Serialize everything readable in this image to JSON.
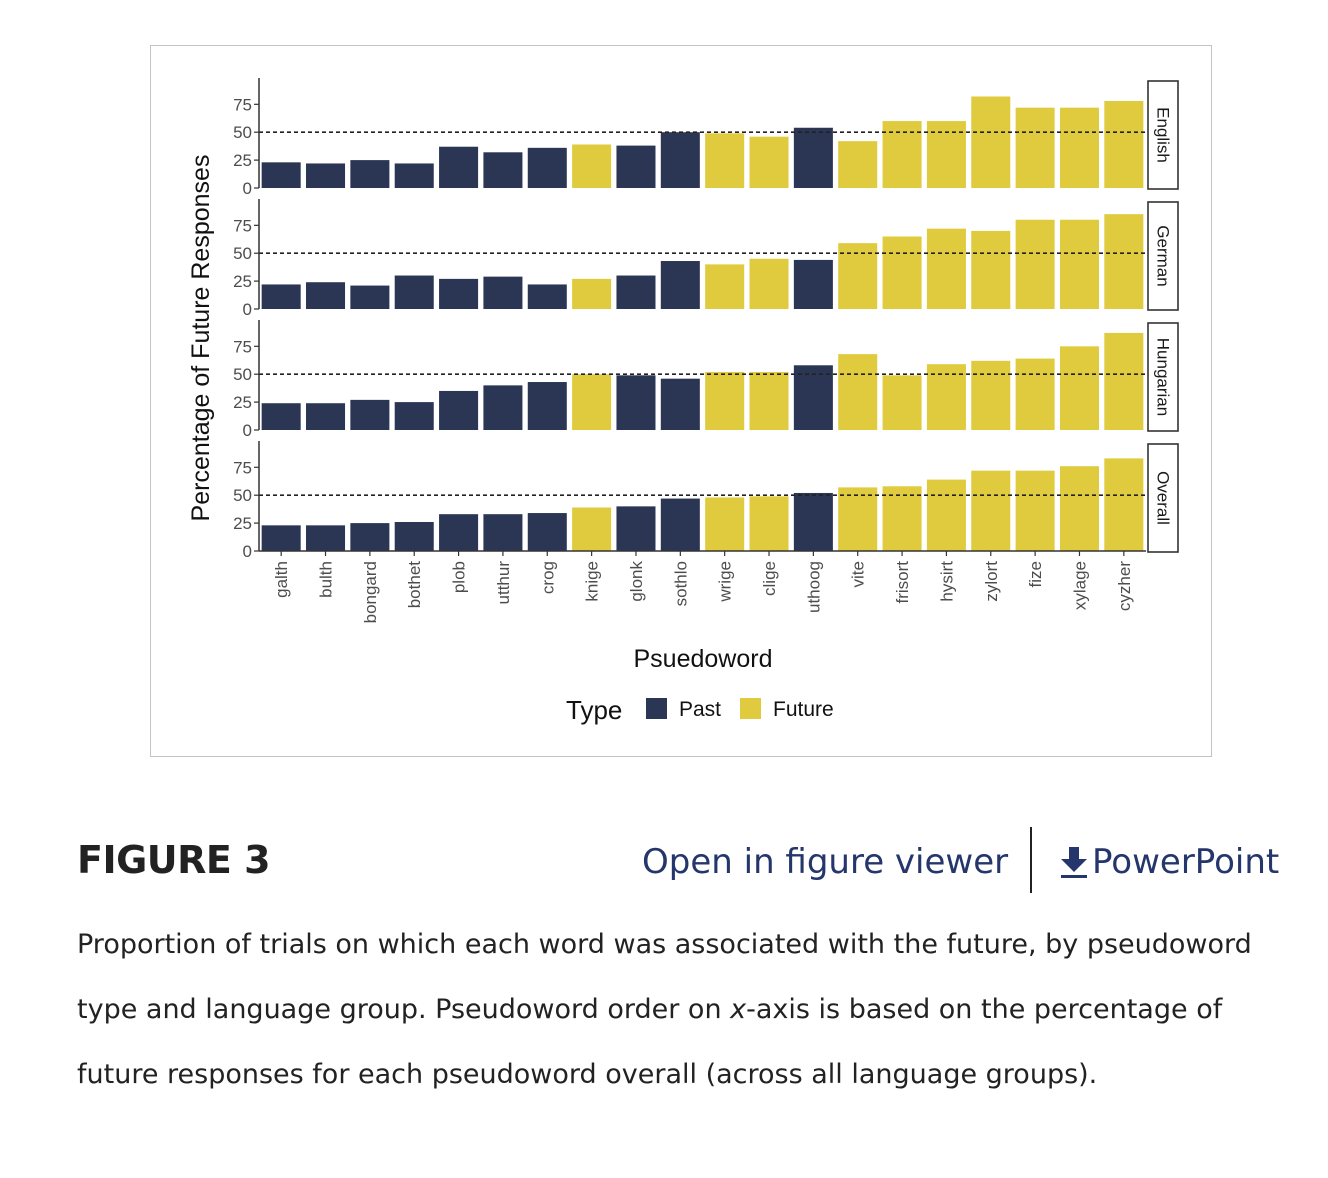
{
  "figure": {
    "heading": "FIGURE 3",
    "open_viewer_label": "Open in figure viewer",
    "powerpoint_label": "PowerPoint",
    "powerpoint_icon": "download-icon",
    "caption_pre": "Proportion of trials on which each word was associated with the future, by pseudoword type and language group. Pseudoword order on ",
    "caption_italic": "x",
    "caption_post": "-axis is based on the percentage of future responses for each pseudoword overall (across all language groups).",
    "link_color": "#24366b"
  },
  "chart_data": {
    "type": "bar",
    "title": "",
    "xlabel": "Psuedoword",
    "ylabel": "Percentage of Future Responses",
    "ylim": [
      0,
      95
    ],
    "yticks": [
      0,
      25,
      50,
      75
    ],
    "reference_line": 50,
    "grid": false,
    "legend": {
      "title": "Type",
      "placement": "bottom",
      "entries": [
        {
          "name": "Past",
          "color": "#2b3654"
        },
        {
          "name": "Future",
          "color": "#e0cb3f"
        }
      ]
    },
    "categories": [
      "galth",
      "bulth",
      "bongard",
      "bothet",
      "plob",
      "utthur",
      "crog",
      "knige",
      "glonk",
      "sothlo",
      "wrige",
      "clige",
      "uthoog",
      "vite",
      "frisort",
      "hysirt",
      "zylort",
      "fize",
      "xylage",
      "cyzher"
    ],
    "types": [
      "Past",
      "Past",
      "Past",
      "Past",
      "Past",
      "Past",
      "Past",
      "Future",
      "Past",
      "Past",
      "Future",
      "Future",
      "Past",
      "Future",
      "Future",
      "Future",
      "Future",
      "Future",
      "Future",
      "Future"
    ],
    "facets": [
      {
        "name": "English",
        "values": [
          23,
          22,
          25,
          22,
          37,
          32,
          36,
          39,
          38,
          50,
          49,
          46,
          54,
          42,
          60,
          60,
          82,
          72,
          72,
          78
        ]
      },
      {
        "name": "German",
        "values": [
          22,
          24,
          21,
          30,
          27,
          29,
          22,
          27,
          30,
          43,
          40,
          45,
          44,
          59,
          65,
          72,
          70,
          80,
          80,
          85
        ]
      },
      {
        "name": "Hungarian",
        "values": [
          24,
          24,
          27,
          25,
          35,
          40,
          43,
          50,
          49,
          46,
          52,
          52,
          58,
          68,
          49,
          59,
          62,
          64,
          75,
          87
        ]
      },
      {
        "name": "Overall",
        "values": [
          23,
          23,
          25,
          26,
          33,
          33,
          34,
          39,
          40,
          47,
          48,
          49,
          52,
          57,
          58,
          64,
          72,
          72,
          76,
          83
        ]
      }
    ]
  }
}
